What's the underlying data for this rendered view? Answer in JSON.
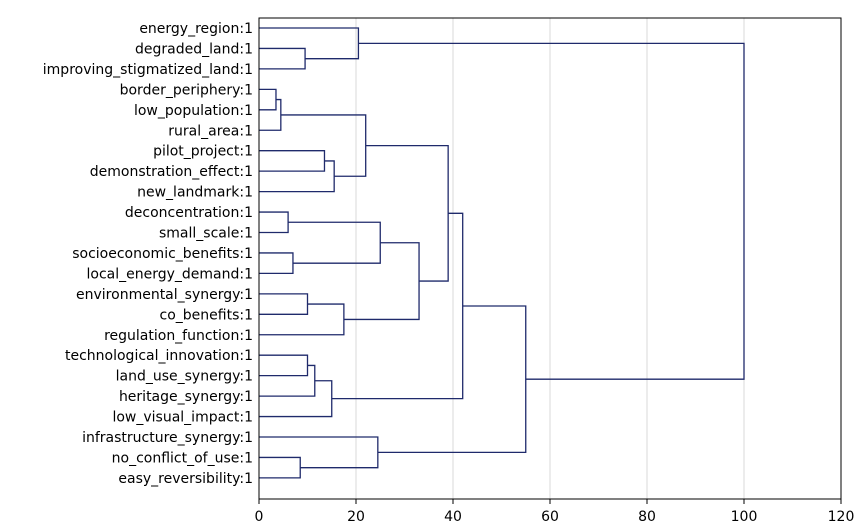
{
  "chart_data": {
    "type": "dendrogram",
    "title": "",
    "xlabel": "",
    "ylabel": "",
    "xlim": [
      0,
      120
    ],
    "x_ticks": [
      0,
      20,
      40,
      60,
      80,
      100,
      120
    ],
    "grid": "vertical",
    "colors": {
      "link": "#1f2a6b",
      "grid": "#d9d9d9",
      "frame": "#000000"
    },
    "leaves": [
      "energy_region:1",
      "degraded_land:1",
      "improving_stigmatized_land:1",
      "border_periphery:1",
      "low_population:1",
      "rural_area:1",
      "pilot_project:1",
      "demonstration_effect:1",
      "new_landmark:1",
      "deconcentration:1",
      "small_scale:1",
      "socioeconomic_benefits:1",
      "local_energy_demand:1",
      "environmental_synergy:1",
      "co_benefits:1",
      "regulation_function:1",
      "technological_innovation:1",
      "land_use_synergy:1",
      "heritage_synergy:1",
      "low_visual_impact:1",
      "infrastructure_synergy:1",
      "no_conflict_of_use:1",
      "easy_reversibility:1"
    ],
    "merges": [
      {
        "id": "m1",
        "a": "degraded_land:1",
        "b": "improving_stigmatized_land:1",
        "height": 9.5
      },
      {
        "id": "m2",
        "a": "energy_region:1",
        "b": "m1",
        "height": 20.5
      },
      {
        "id": "m3",
        "a": "border_periphery:1",
        "b": "low_population:1",
        "height": 3.5
      },
      {
        "id": "m4",
        "a": "m3",
        "b": "rural_area:1",
        "height": 4.5
      },
      {
        "id": "m5",
        "a": "pilot_project:1",
        "b": "demonstration_effect:1",
        "height": 13.5
      },
      {
        "id": "m6",
        "a": "m5",
        "b": "new_landmark:1",
        "height": 15.5
      },
      {
        "id": "m7",
        "a": "m4",
        "b": "m6",
        "height": 22.0
      },
      {
        "id": "m8",
        "a": "deconcentration:1",
        "b": "small_scale:1",
        "height": 6.0
      },
      {
        "id": "m9",
        "a": "socioeconomic_benefits:1",
        "b": "local_energy_demand:1",
        "height": 7.0
      },
      {
        "id": "m10",
        "a": "m8",
        "b": "m9",
        "height": 25.0
      },
      {
        "id": "m11",
        "a": "environmental_synergy:1",
        "b": "co_benefits:1",
        "height": 10.0
      },
      {
        "id": "m12",
        "a": "m11",
        "b": "regulation_function:1",
        "height": 17.5
      },
      {
        "id": "m13",
        "a": "m10",
        "b": "m12",
        "height": 33.0
      },
      {
        "id": "m14",
        "a": "m7",
        "b": "m13",
        "height": 39.0
      },
      {
        "id": "m15",
        "a": "technological_innovation:1",
        "b": "land_use_synergy:1",
        "height": 10.0
      },
      {
        "id": "m16",
        "a": "m15",
        "b": "heritage_synergy:1",
        "height": 11.5
      },
      {
        "id": "m17",
        "a": "m16",
        "b": "low_visual_impact:1",
        "height": 15.0
      },
      {
        "id": "m18",
        "a": "m14",
        "b": "m17",
        "height": 42.0
      },
      {
        "id": "m19",
        "a": "no_conflict_of_use:1",
        "b": "easy_reversibility:1",
        "height": 8.5
      },
      {
        "id": "m20",
        "a": "infrastructure_synergy:1",
        "b": "m19",
        "height": 24.5
      },
      {
        "id": "m21",
        "a": "m18",
        "b": "m20",
        "height": 55.0
      },
      {
        "id": "m22",
        "a": "m2",
        "b": "m21",
        "height": 100.0
      }
    ]
  }
}
